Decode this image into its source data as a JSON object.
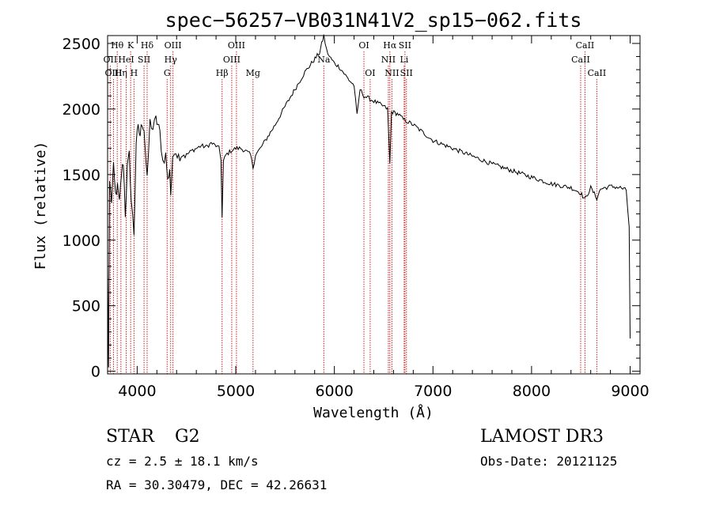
{
  "chart_data": {
    "type": "line",
    "title": "spec−56257−VB031N41V2_sp15−062.fits",
    "xlabel": "Wavelength (Å)",
    "ylabel": "Flux (relative)",
    "xlim": [
      3700,
      9100
    ],
    "ylim": [
      -20,
      2560
    ],
    "xticks": [
      4000,
      5000,
      6000,
      7000,
      8000,
      9000
    ],
    "yticks": [
      0,
      500,
      1000,
      1500,
      2000,
      2500
    ],
    "series": [
      {
        "name": "spectrum",
        "points": [
          [
            3700,
            800
          ],
          [
            3710,
            30
          ],
          [
            3720,
            1450
          ],
          [
            3740,
            1300
          ],
          [
            3760,
            1550
          ],
          [
            3780,
            1350
          ],
          [
            3800,
            1400
          ],
          [
            3820,
            1280
          ],
          [
            3840,
            1500
          ],
          [
            3860,
            1600
          ],
          [
            3880,
            1200
          ],
          [
            3900,
            1550
          ],
          [
            3920,
            1650
          ],
          [
            3940,
            1300
          ],
          [
            3968,
            1050
          ],
          [
            3990,
            1750
          ],
          [
            4010,
            1850
          ],
          [
            4030,
            1800
          ],
          [
            4050,
            1900
          ],
          [
            4070,
            1850
          ],
          [
            4101,
            1450
          ],
          [
            4130,
            1900
          ],
          [
            4160,
            1850
          ],
          [
            4190,
            1920
          ],
          [
            4210,
            1880
          ],
          [
            4230,
            1820
          ],
          [
            4260,
            1600
          ],
          [
            4290,
            1650
          ],
          [
            4310,
            1450
          ],
          [
            4330,
            1550
          ],
          [
            4340,
            1350
          ],
          [
            4360,
            1600
          ],
          [
            4380,
            1700
          ],
          [
            4420,
            1640
          ],
          [
            4460,
            1660
          ],
          [
            4500,
            1650
          ],
          [
            4550,
            1680
          ],
          [
            4600,
            1700
          ],
          [
            4650,
            1720
          ],
          [
            4700,
            1710
          ],
          [
            4750,
            1740
          ],
          [
            4800,
            1720
          ],
          [
            4830,
            1700
          ],
          [
            4850,
            1620
          ],
          [
            4861,
            1170
          ],
          [
            4875,
            1600
          ],
          [
            4900,
            1650
          ],
          [
            4950,
            1680
          ],
          [
            5000,
            1700
          ],
          [
            5050,
            1700
          ],
          [
            5100,
            1680
          ],
          [
            5150,
            1650
          ],
          [
            5175,
            1550
          ],
          [
            5200,
            1650
          ],
          [
            5250,
            1700
          ],
          [
            5300,
            1760
          ],
          [
            5400,
            1880
          ],
          [
            5500,
            2020
          ],
          [
            5600,
            2150
          ],
          [
            5700,
            2280
          ],
          [
            5780,
            2360
          ],
          [
            5850,
            2430
          ],
          [
            5893,
            2560
          ],
          [
            5920,
            2450
          ],
          [
            5950,
            2400
          ],
          [
            6000,
            2350
          ],
          [
            6050,
            2320
          ],
          [
            6100,
            2270
          ],
          [
            6150,
            2220
          ],
          [
            6200,
            2180
          ],
          [
            6230,
            1950
          ],
          [
            6260,
            2150
          ],
          [
            6300,
            2100
          ],
          [
            6350,
            2080
          ],
          [
            6400,
            2060
          ],
          [
            6450,
            2040
          ],
          [
            6500,
            2020
          ],
          [
            6540,
            2000
          ],
          [
            6563,
            1580
          ],
          [
            6580,
            1980
          ],
          [
            6650,
            1960
          ],
          [
            6700,
            1920
          ],
          [
            6800,
            1880
          ],
          [
            6900,
            1820
          ],
          [
            7000,
            1760
          ],
          [
            7200,
            1700
          ],
          [
            7400,
            1640
          ],
          [
            7600,
            1580
          ],
          [
            7800,
            1530
          ],
          [
            8000,
            1480
          ],
          [
            8200,
            1430
          ],
          [
            8400,
            1400
          ],
          [
            8498,
            1360
          ],
          [
            8542,
            1310
          ],
          [
            8600,
            1400
          ],
          [
            8662,
            1320
          ],
          [
            8700,
            1390
          ],
          [
            8800,
            1410
          ],
          [
            8900,
            1400
          ],
          [
            8960,
            1380
          ],
          [
            8990,
            1100
          ],
          [
            9000,
            250
          ]
        ]
      }
    ],
    "lines": [
      {
        "label": "Hθ",
        "wavelength": 3798,
        "row": 0
      },
      {
        "label": "OII",
        "wavelength": 3727,
        "row": 1
      },
      {
        "label": "OIII",
        "wavelength": 3760,
        "row": 2
      },
      {
        "label": "Hη",
        "wavelength": 3835,
        "row": 2
      },
      {
        "label": "HeI",
        "wavelength": 3889,
        "row": 1
      },
      {
        "label": "K",
        "wavelength": 3934,
        "row": 0
      },
      {
        "label": "SII",
        "wavelength": 4070,
        "row": 1
      },
      {
        "label": "H",
        "wavelength": 3968,
        "row": 2
      },
      {
        "label": "Hδ",
        "wavelength": 4101,
        "row": 0
      },
      {
        "label": "OIII",
        "wavelength": 4363,
        "row": 0
      },
      {
        "label": "Hγ",
        "wavelength": 4340,
        "row": 1
      },
      {
        "label": "G",
        "wavelength": 4304,
        "row": 2
      },
      {
        "label": "Hβ",
        "wavelength": 4861,
        "row": 2
      },
      {
        "label": "OIII",
        "wavelength": 5007,
        "row": 0
      },
      {
        "label": "OIII",
        "wavelength": 4959,
        "row": 1
      },
      {
        "label": "Mg",
        "wavelength": 5175,
        "row": 2
      },
      {
        "label": "Na",
        "wavelength": 5893,
        "row": 1
      },
      {
        "label": "OI",
        "wavelength": 6300,
        "row": 0
      },
      {
        "label": "OI",
        "wavelength": 6363,
        "row": 2
      },
      {
        "label": "Hα",
        "wavelength": 6563,
        "row": 0
      },
      {
        "label": "SII",
        "wavelength": 6716,
        "row": 0
      },
      {
        "label": "NII",
        "wavelength": 6548,
        "row": 1
      },
      {
        "label": "Li",
        "wavelength": 6708,
        "row": 1
      },
      {
        "label": "NII",
        "wavelength": 6584,
        "row": 2
      },
      {
        "label": "SII",
        "wavelength": 6731,
        "row": 2
      },
      {
        "label": "CaII",
        "wavelength": 8542,
        "row": 0
      },
      {
        "label": "CaII",
        "wavelength": 8498,
        "row": 1
      },
      {
        "label": "CaII",
        "wavelength": 8662,
        "row": 2
      }
    ]
  },
  "info": {
    "class": "STAR",
    "subclass": "G2",
    "cz": "cz = 2.5 ± 18.1 km/s",
    "radec": "RA =  30.30479, DEC =  42.26631",
    "survey": "LAMOST DR3",
    "obs_date": "Obs-Date: 20121125"
  },
  "colors": {
    "spectrum": "#000000",
    "line_markers": "#cc2222",
    "axes": "#000000"
  }
}
